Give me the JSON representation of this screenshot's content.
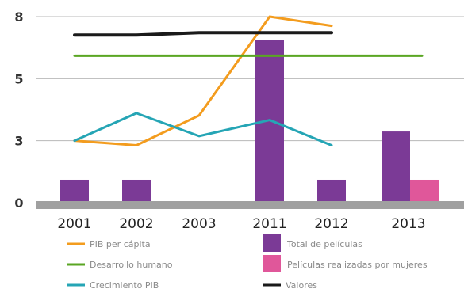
{
  "chart_data": {
    "type": "bar",
    "categories": [
      "2001",
      "2002",
      "2003",
      "2011",
      "2012",
      "2013"
    ],
    "ylim": [
      0,
      8
    ],
    "yticks": [
      "0",
      "3",
      "5",
      "8"
    ],
    "ytick_values": [
      0,
      2.7,
      5.4,
      8.1
    ],
    "bar_series": [
      {
        "name": "Total de películas",
        "color": "#7b3a96",
        "values": [
          1,
          1,
          null,
          7.1,
          1,
          3.1
        ]
      },
      {
        "name": "Películas realizadas por mujeres",
        "color": "#e0579a",
        "values": [
          null,
          null,
          null,
          null,
          null,
          1
        ]
      }
    ],
    "line_series": [
      {
        "name": "PIB per cápita",
        "color": "#f39c1e",
        "values": [
          2.7,
          2.5,
          3.8,
          8.1,
          7.7,
          null
        ]
      },
      {
        "name": "Desarrollo humano",
        "color": "#5aa623",
        "values": [
          6.4,
          6.4,
          6.4,
          6.4,
          6.4,
          6.4
        ]
      },
      {
        "name": "Crecimiento PIB",
        "color": "#25a5b5",
        "values": [
          2.7,
          3.9,
          2.9,
          3.6,
          2.5,
          null
        ]
      },
      {
        "name": "Valores",
        "color": "#1a1a1a",
        "values": [
          7.3,
          7.3,
          7.4,
          7.4,
          7.4,
          null
        ]
      }
    ],
    "legend": {
      "placement": "bottom",
      "items": [
        {
          "label": "PIB per cápita",
          "kind": "line",
          "color": "#f39c1e"
        },
        {
          "label": "Total de películas",
          "kind": "bar",
          "color": "#7b3a96"
        },
        {
          "label": "Desarrollo humano",
          "kind": "line",
          "color": "#5aa623"
        },
        {
          "label": "Películas realizadas por mujeres",
          "kind": "bar",
          "color": "#e0579a"
        },
        {
          "label": "Crecimiento PIB",
          "kind": "line",
          "color": "#25a5b5"
        },
        {
          "label": "Valores",
          "kind": "line",
          "color": "#1a1a1a"
        }
      ]
    },
    "grid": true,
    "axis_color": "#a0a0a0",
    "grid_color": "#b8b8b8"
  }
}
